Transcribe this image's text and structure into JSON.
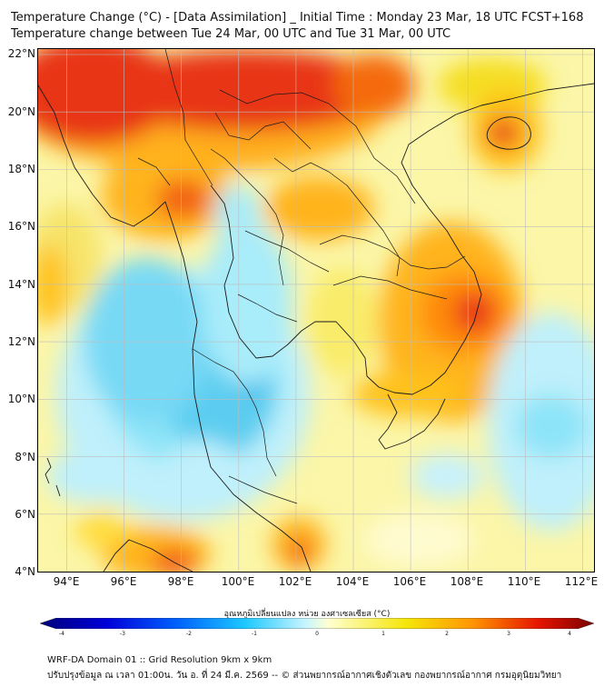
{
  "header": {
    "title_line1": "Temperature Change (°C) - [Data Assimilation] _ Initial Time : Monday 23 Mar, 18 UTC FCST+168",
    "title_line2": "Temperature change between Tue 24 Mar, 00 UTC and Tue 31 Mar, 00 UTC"
  },
  "map": {
    "lat_labels": [
      "22°N",
      "20°N",
      "18°N",
      "16°N",
      "14°N",
      "12°N",
      "10°N",
      "8°N",
      "6°N",
      "4°N"
    ],
    "lon_labels": [
      "94°E",
      "96°E",
      "98°E",
      "100°E",
      "102°E",
      "104°E",
      "106°E",
      "108°E",
      "110°E",
      "112°E"
    ],
    "lat_range": [
      4,
      22.2
    ],
    "lon_range": [
      93,
      112.4
    ],
    "colors": {
      "background": "#fbf6a8",
      "land_line": "#1a1a1a",
      "grid": "#bdbdbd"
    }
  },
  "colorbar": {
    "title": "อุณหภูมิเปลี่ยนแปลง หน่วย องศาเซลเซียส (°C)",
    "ticks": [
      "-4",
      "-3",
      "-2",
      "-1",
      "0",
      "1",
      "2",
      "3",
      "4"
    ],
    "range": [
      -4,
      4
    ],
    "stops": [
      "#00007a",
      "#0000d8",
      "#0064ff",
      "#1ec8ff",
      "#c8f5ff",
      "#ffffd2",
      "#f5e60a",
      "#ff9600",
      "#e61400",
      "#7a0000"
    ]
  },
  "footer": {
    "line1": "WRF-DA Domain 01 :: Grid Resolution 9km x 9km",
    "line2": "ปรับปรุงข้อมูล ณ เวลา 01:00น. วัน อ. ที่ 24 มี.ค. 2569 -- © ส่วนพยากรณ์อากาศเชิงตัวเลข กองพยากรณ์อากาศ กรมอุตุนิยมวิทยา"
  }
}
